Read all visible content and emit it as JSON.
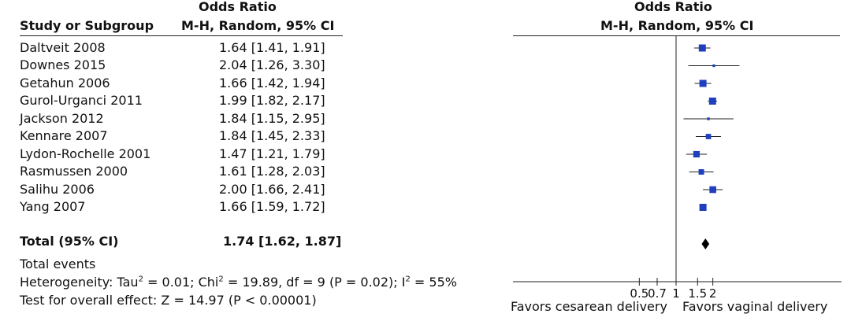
{
  "headers": {
    "study": "Study or Subgroup",
    "or_title": "Odds Ratio",
    "or_method": "M-H, Random, 95% CI",
    "plot_title": "Odds Ratio",
    "plot_method": "M-H, Random, 95% CI"
  },
  "total": {
    "label": "Total (95% CI)",
    "ci_text": "1.74 [1.62, 1.87]"
  },
  "footer": {
    "total_events": "Total events",
    "heterogeneity_pre": "Heterogeneity: Tau",
    "heterogeneity_mid": " = 0.01; Chi",
    "heterogeneity_mid2": " = 19.89, df = 9 (P = 0.02); I",
    "heterogeneity_post": " = 55%",
    "sup2": "2",
    "overall_effect": "Test for overall effect: Z = 14.97 (P < 0.00001)"
  },
  "axis": {
    "favors_left": "Favors cesarean delivery",
    "favors_right": "Favors vaginal delivery"
  },
  "colors": {
    "marker": "#1f3fbf",
    "diamond": "#000000",
    "line": "#222222"
  },
  "chart_data": {
    "type": "scatter",
    "scale": "log",
    "null_value": 1,
    "studies": [
      {
        "name": "Daltveit 2008",
        "ci_text": "1.64 [1.41, 1.91]",
        "or": 1.64,
        "lower": 1.41,
        "upper": 1.91
      },
      {
        "name": "Downes 2015",
        "ci_text": "2.04 [1.26, 3.30]",
        "or": 2.04,
        "lower": 1.26,
        "upper": 3.3
      },
      {
        "name": "Getahun 2006",
        "ci_text": "1.66 [1.42, 1.94]",
        "or": 1.66,
        "lower": 1.42,
        "upper": 1.94
      },
      {
        "name": "Gurol-Urganci 2011",
        "ci_text": "1.99 [1.82, 2.17]",
        "or": 1.99,
        "lower": 1.82,
        "upper": 2.17
      },
      {
        "name": "Jackson 2012",
        "ci_text": "1.84 [1.15, 2.95]",
        "or": 1.84,
        "lower": 1.15,
        "upper": 2.95
      },
      {
        "name": "Kennare 2007",
        "ci_text": "1.84 [1.45, 2.33]",
        "or": 1.84,
        "lower": 1.45,
        "upper": 2.33
      },
      {
        "name": "Lydon-Rochelle 2001",
        "ci_text": "1.47 [1.21, 1.79]",
        "or": 1.47,
        "lower": 1.21,
        "upper": 1.79
      },
      {
        "name": "Rasmussen 2000",
        "ci_text": "1.61 [1.28, 2.03]",
        "or": 1.61,
        "lower": 1.28,
        "upper": 2.03
      },
      {
        "name": "Salihu 2006",
        "ci_text": "2.00 [1.66, 2.41]",
        "or": 2.0,
        "lower": 1.66,
        "upper": 2.41
      },
      {
        "name": "Yang 2007",
        "ci_text": "1.66 [1.59, 1.72]",
        "or": 1.66,
        "lower": 1.59,
        "upper": 1.72
      }
    ],
    "pooled": {
      "or": 1.74,
      "lower": 1.62,
      "upper": 1.87
    },
    "ticks": [
      {
        "label": "0.5",
        "value": 0.5
      },
      {
        "label": "0.7",
        "value": 0.7
      },
      {
        "label": "1",
        "value": 1
      },
      {
        "label": "1.5",
        "value": 1.5
      },
      {
        "label": "2",
        "value": 2
      }
    ]
  }
}
